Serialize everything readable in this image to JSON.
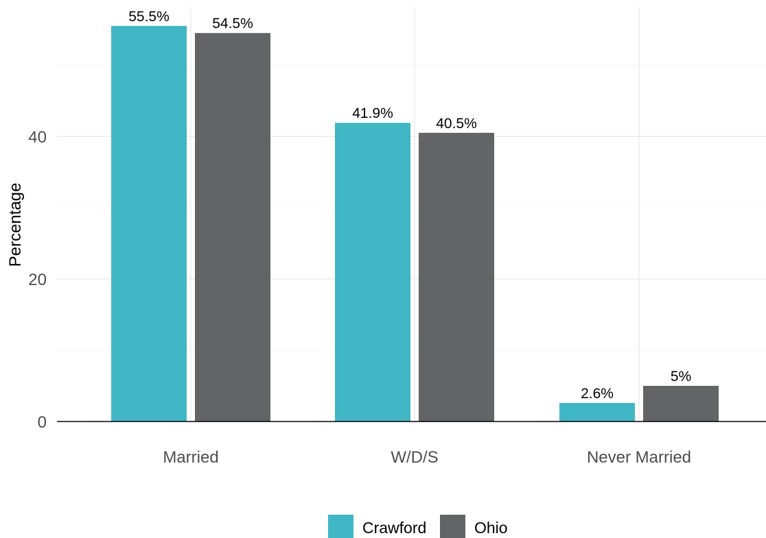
{
  "chart_data": {
    "type": "bar",
    "title": "",
    "xlabel": "",
    "ylabel": "Percentage",
    "categories": [
      "Married",
      "W/D/S",
      "Never Married"
    ],
    "series": [
      {
        "name": "Crawford",
        "color": "#41B6C4",
        "values": [
          55.5,
          41.9,
          2.6
        ],
        "labels": [
          "55.5%",
          "41.9%",
          "2.6%"
        ]
      },
      {
        "name": "Ohio",
        "color": "#636466",
        "values": [
          54.5,
          40.5,
          5
        ],
        "labels": [
          "54.5%",
          "40.5%",
          "5%"
        ]
      }
    ],
    "ylim": [
      0,
      58
    ],
    "yticks": [
      0,
      20,
      40
    ],
    "grid": true,
    "legend_position": "bottom"
  }
}
